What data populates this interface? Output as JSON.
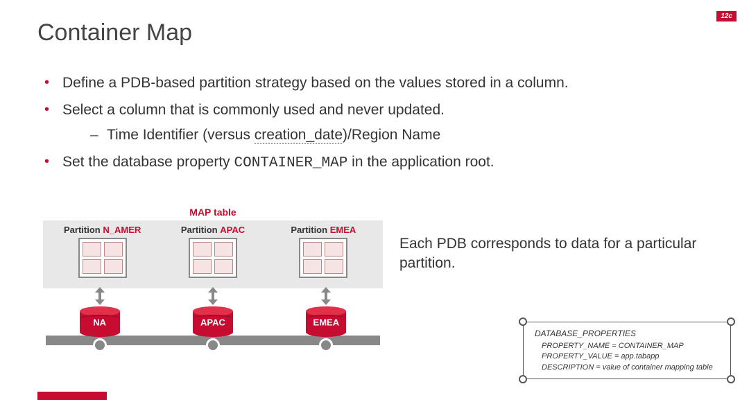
{
  "badge_text": "12c",
  "title": "Container Map",
  "bullets": {
    "b1": "Define a PDB-based partition strategy based on the values stored in a column.",
    "b2": "Select a column that is commonly used and never updated.",
    "b2_sub_pre": "Time Identifier (versus ",
    "b2_sub_ul": "creation_date",
    "b2_sub_post": ")/Region Name",
    "b3_pre": "Set the database property ",
    "b3_code": "CONTAINER_MAP",
    "b3_post": " in the application root."
  },
  "diagram": {
    "map_label": "MAP table",
    "partition_word": "Partition",
    "colors": {
      "accent": "#c60c30",
      "gray_band": "#e8e8e8",
      "rail": "#888888",
      "cell_fill": "#f6e4e4",
      "cell_border": "#b88"
    },
    "partitions": [
      {
        "name": "N_AMER",
        "color": "#c60c30",
        "cyl_label": "NA"
      },
      {
        "name": "APAC",
        "color": "#c60c30",
        "cyl_label": "APAC"
      },
      {
        "name": "EMEA",
        "color": "#c60c30",
        "cyl_label": "EMEA"
      }
    ]
  },
  "right_text": "Each PDB corresponds to data for a particular partition.",
  "dbprops": {
    "header": "DATABASE_PROPERTIES",
    "r1": "PROPERTY_NAME = CONTAINER_MAP",
    "r2": "PROPERTY_VALUE = app.tabapp",
    "r3": "DESCRIPTION = value of container mapping table"
  }
}
